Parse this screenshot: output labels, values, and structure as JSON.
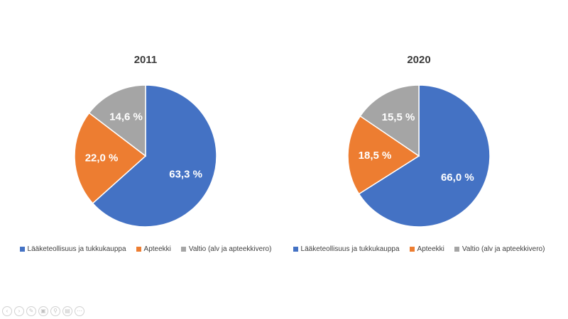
{
  "chart_data": [
    {
      "type": "pie",
      "title": "2011",
      "categories": [
        "Lääketeollisuus ja tukkukauppa",
        "Apteekki",
        "Valtio (alv ja apteekkivero)"
      ],
      "values": [
        63.3,
        22.0,
        14.6
      ],
      "labels": [
        "63,3 %",
        "22,0 %",
        "14,6 %"
      ],
      "colors": [
        "#4472C4",
        "#ED7D31",
        "#A5A5A5"
      ],
      "legend_position": "bottom"
    },
    {
      "type": "pie",
      "title": "2020",
      "categories": [
        "Lääketeollisuus ja tukkukauppa",
        "Apteekki",
        "Valtio (alv ja apteekkivero)"
      ],
      "values": [
        66.0,
        18.5,
        15.5
      ],
      "labels": [
        "66,0 %",
        "18,5 %",
        "15,5 %"
      ],
      "colors": [
        "#4472C4",
        "#ED7D31",
        "#A5A5A5"
      ],
      "legend_position": "bottom"
    }
  ],
  "toolbar_icons": [
    "previous-icon",
    "next-icon",
    "pen-icon",
    "slides-icon",
    "zoom-icon",
    "subtitles-icon",
    "more-icon"
  ]
}
